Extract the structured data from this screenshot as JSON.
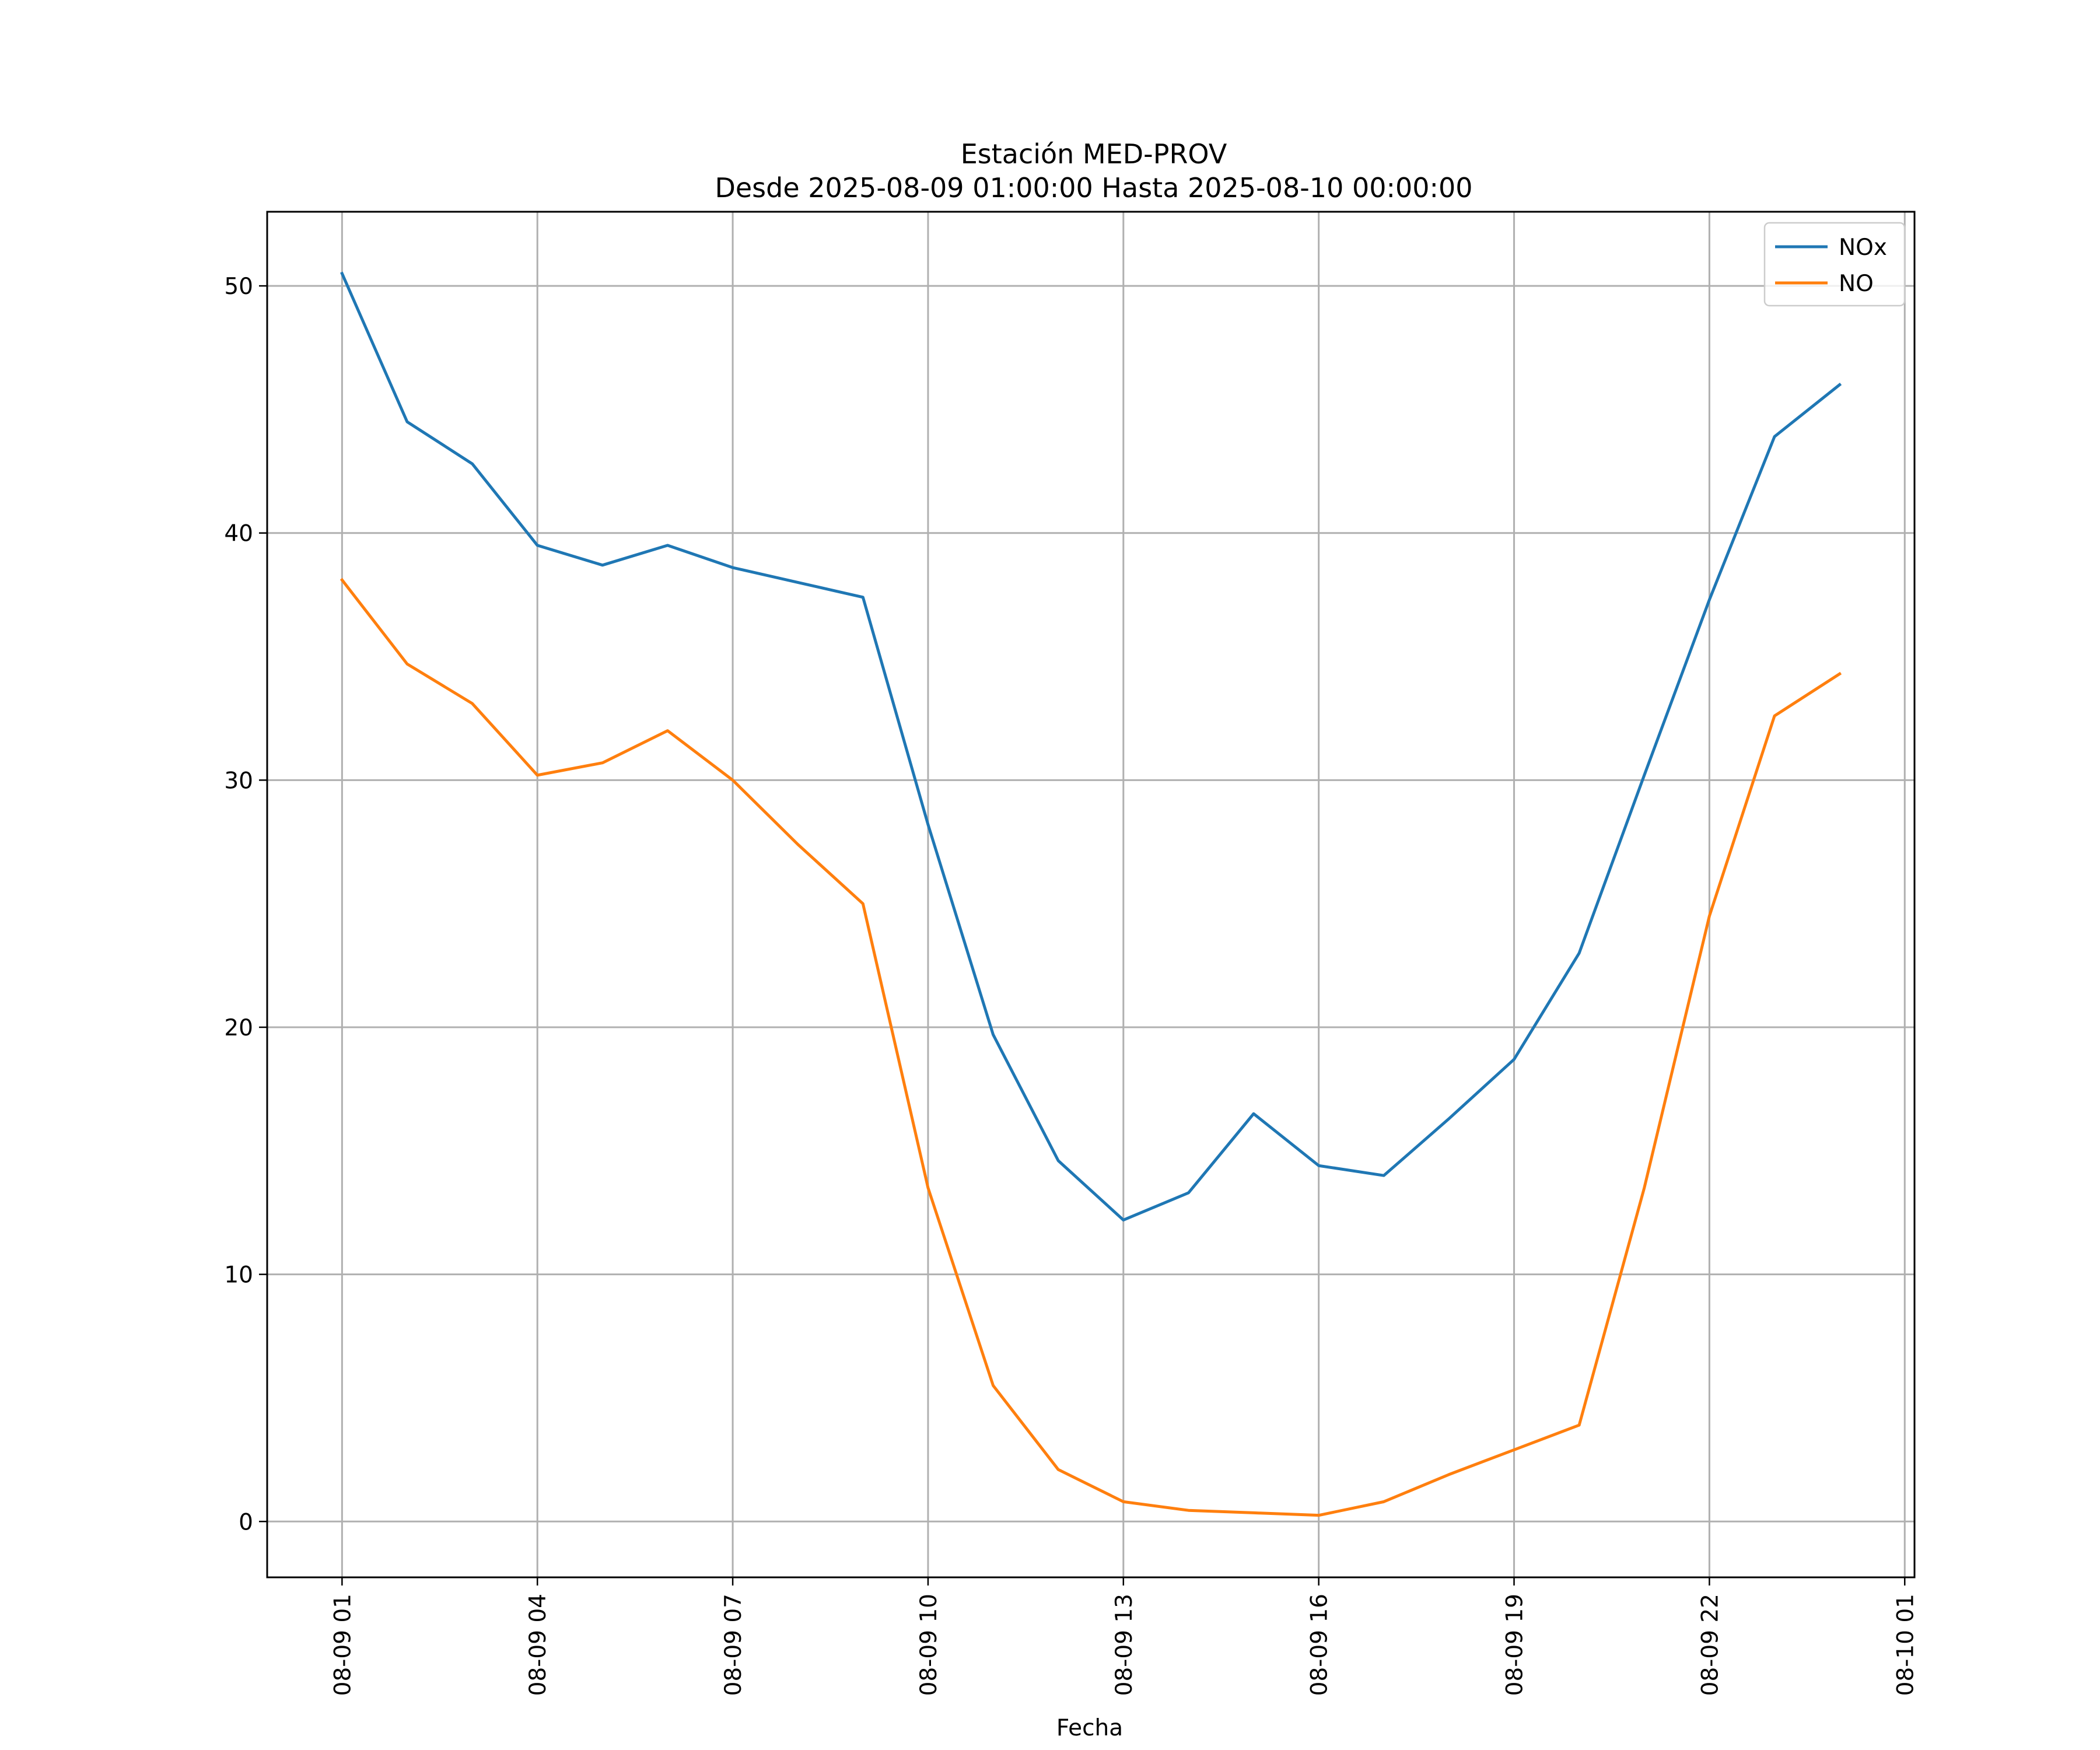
{
  "chart_data": {
    "type": "line",
    "title": "Estación MED-PROV",
    "subtitle": "Desde 2025-08-09 01:00:00 Hasta 2025-08-10 00:00:00",
    "xlabel": "Fecha",
    "ylabel": "",
    "x": [
      "08-09 01",
      "08-09 02",
      "08-09 03",
      "08-09 04",
      "08-09 05",
      "08-09 06",
      "08-09 07",
      "08-09 08",
      "08-09 09",
      "08-09 10",
      "08-09 11",
      "08-09 12",
      "08-09 13",
      "08-09 14",
      "08-09 15",
      "08-09 16",
      "08-09 17",
      "08-09 18",
      "08-09 19",
      "08-09 20",
      "08-09 21",
      "08-09 22",
      "08-09 23",
      "08-10 00"
    ],
    "x_hours": [
      0,
      1,
      2,
      3,
      4,
      5,
      6,
      7,
      8,
      9,
      10,
      11,
      12,
      13,
      14,
      15,
      16,
      17,
      18,
      19,
      20,
      21,
      22,
      23
    ],
    "xlim_hours": [
      -1.15,
      24.15
    ],
    "xticks": [
      {
        "hour": 0,
        "label": "08-09 01"
      },
      {
        "hour": 3,
        "label": "08-09 04"
      },
      {
        "hour": 6,
        "label": "08-09 07"
      },
      {
        "hour": 9,
        "label": "08-09 10"
      },
      {
        "hour": 12,
        "label": "08-09 13"
      },
      {
        "hour": 15,
        "label": "08-09 16"
      },
      {
        "hour": 18,
        "label": "08-09 19"
      },
      {
        "hour": 21,
        "label": "08-09 22"
      },
      {
        "hour": 24,
        "label": "08-10 01"
      }
    ],
    "ylim": [
      -2.26,
      53
    ],
    "yticks": [
      0,
      10,
      20,
      30,
      40,
      50
    ],
    "grid": true,
    "legend_position": "top-right",
    "series": [
      {
        "name": "NOx",
        "color": "#1f77b4",
        "values": [
          50.5,
          44.5,
          42.8,
          39.5,
          38.7,
          39.5,
          38.6,
          38.0,
          37.4,
          28.2,
          19.7,
          14.6,
          12.2,
          13.3,
          16.5,
          14.4,
          14.0,
          16.3,
          18.7,
          23.0,
          30.2,
          37.3,
          43.9,
          46.0
        ]
      },
      {
        "name": "NO",
        "color": "#ff7f0e",
        "values": [
          38.1,
          34.7,
          33.1,
          30.2,
          30.7,
          32.0,
          30.0,
          27.4,
          25.0,
          13.5,
          5.5,
          2.1,
          0.8,
          0.45,
          0.35,
          0.25,
          0.8,
          1.9,
          2.9,
          3.9,
          13.5,
          24.5,
          32.6,
          34.3
        ]
      }
    ]
  }
}
